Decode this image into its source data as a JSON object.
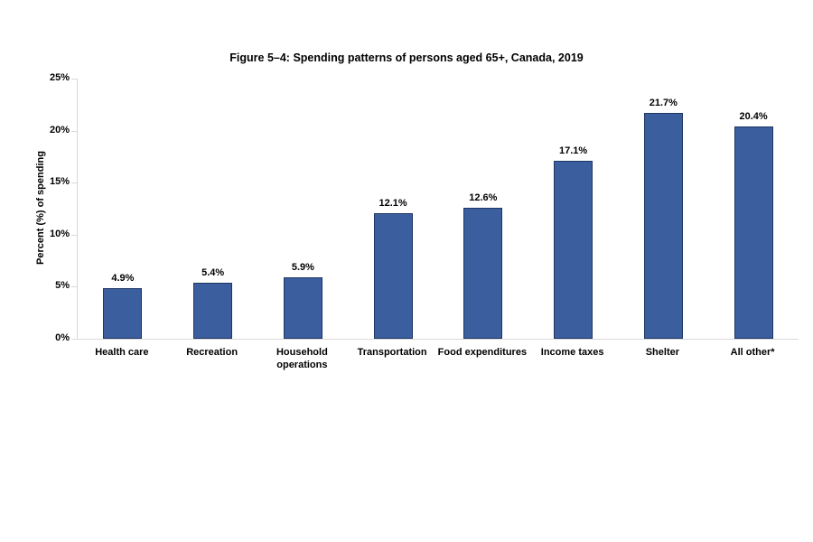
{
  "figure": {
    "background": "#FFFFFF"
  },
  "chart_data": {
    "type": "bar",
    "title": "Figure 5–4: Spending patterns of persons aged 65+, Canada, 2019",
    "xlabel": "",
    "ylabel": "Percent (%) of spending",
    "categories": [
      "Health care",
      "Recreation",
      "Household operations",
      "Transportation",
      "Food expenditures",
      "Income taxes",
      "Shelter",
      "All other*"
    ],
    "x_display_labels": [
      "Health care",
      "Recreation",
      "Household\noperations",
      "Transportation",
      "Food expenditures",
      "Income taxes",
      "Shelter",
      "All other*"
    ],
    "values": [
      4.9,
      5.4,
      5.9,
      12.1,
      12.6,
      17.1,
      21.7,
      20.4
    ],
    "data_labels": [
      "4.9%",
      "5.4%",
      "5.9%",
      "12.1%",
      "12.6%",
      "17.1%",
      "21.7%",
      "20.4%"
    ],
    "y_ticks": [
      "0%",
      "5%",
      "10%",
      "15%",
      "20%",
      "25%"
    ],
    "ylim": [
      0,
      25
    ],
    "grid": false,
    "legend": false,
    "colors": {
      "bar_fill": "#3A5E9E",
      "bar_border": "#1F3763",
      "axis_line": "#D9D9D9",
      "text": "#000000"
    }
  }
}
